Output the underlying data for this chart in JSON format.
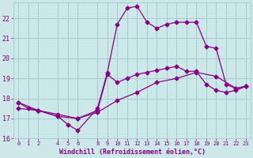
{
  "xlabel": "Windchill (Refroidissement éolien,°C)",
  "bg_color": "#cce8e8",
  "line_color": "#880088",
  "grid_color": "#aacccc",
  "xlim": [
    -0.5,
    23.5
  ],
  "ylim": [
    16,
    22.8
  ],
  "yticks": [
    16,
    17,
    18,
    19,
    20,
    21,
    22
  ],
  "xticks": [
    0,
    1,
    2,
    4,
    5,
    6,
    8,
    9,
    10,
    11,
    12,
    13,
    14,
    15,
    16,
    17,
    18,
    19,
    20,
    21,
    22,
    23
  ],
  "line1_x": [
    0,
    1,
    2,
    4,
    5,
    6,
    8,
    9,
    10,
    11,
    12,
    13,
    14,
    15,
    16,
    17,
    18,
    19,
    20,
    21,
    22,
    23
  ],
  "line1_y": [
    17.8,
    17.5,
    17.4,
    17.1,
    16.7,
    16.4,
    17.5,
    19.3,
    21.7,
    22.5,
    22.6,
    21.8,
    21.5,
    21.7,
    21.8,
    21.8,
    21.8,
    20.6,
    20.5,
    18.7,
    18.5,
    18.6
  ],
  "line2_x": [
    0,
    2,
    4,
    6,
    8,
    9,
    10,
    11,
    12,
    13,
    14,
    15,
    16,
    17,
    18,
    19,
    20,
    21,
    22,
    23
  ],
  "line2_y": [
    17.8,
    17.4,
    17.1,
    17.0,
    17.4,
    19.2,
    18.8,
    19.0,
    19.2,
    19.3,
    19.4,
    19.5,
    19.6,
    19.35,
    19.35,
    18.7,
    18.4,
    18.3,
    18.4,
    18.6
  ],
  "line3_x": [
    0,
    2,
    4,
    6,
    8,
    10,
    12,
    14,
    16,
    18,
    20,
    22,
    23
  ],
  "line3_y": [
    17.5,
    17.4,
    17.2,
    17.0,
    17.3,
    17.9,
    18.3,
    18.8,
    19.0,
    19.3,
    19.1,
    18.5,
    18.6
  ],
  "marker": "D",
  "marker_size": 2.5,
  "line_width": 0.9
}
